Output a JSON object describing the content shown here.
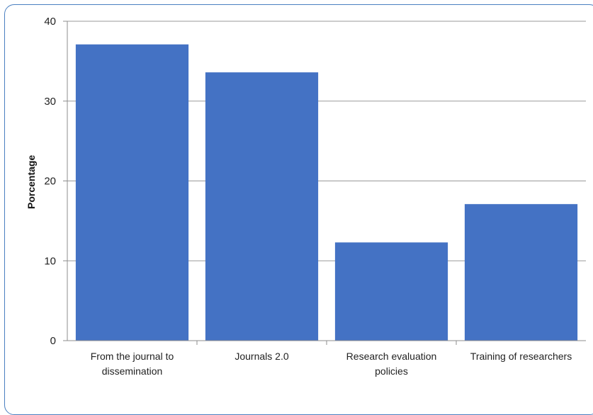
{
  "chart_data": {
    "type": "bar",
    "title": "",
    "xlabel": "",
    "ylabel": "Porcentage",
    "ylim": [
      0,
      40
    ],
    "yticks": [
      0,
      10,
      20,
      30,
      40
    ],
    "grid": true,
    "categories": [
      [
        "From the journal to",
        "dissemination"
      ],
      [
        "Journals 2.0"
      ],
      [
        "Research evaluation",
        "policies"
      ],
      [
        "Training of researchers"
      ]
    ],
    "values": [
      37.1,
      33.6,
      12.3,
      17.1
    ],
    "colors": {
      "bar": "#4472c4",
      "grid": "#9a9a9a",
      "axis": "#8c8c8c",
      "frame": "#4a7fc0"
    }
  }
}
